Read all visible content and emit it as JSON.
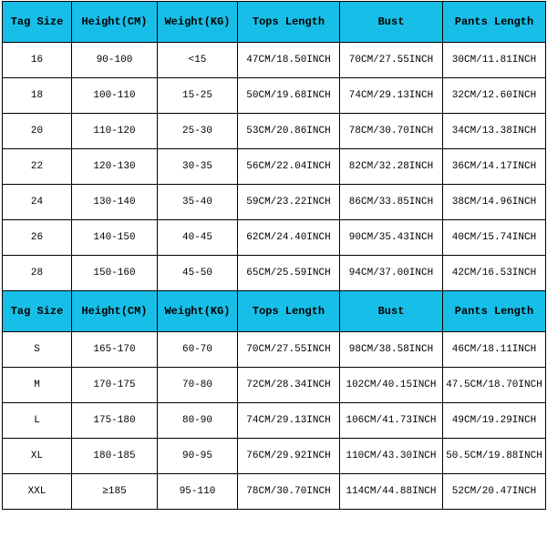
{
  "table": {
    "header_bg": "#17bfe8",
    "header_fontsize": 12,
    "cell_fontsize": 11,
    "header_row_height": 45,
    "data_row_height": 39,
    "border_color": "#000000",
    "text_color": "#000000",
    "columns": [
      "Tag Size",
      "Height(CM)",
      "Weight(KG)",
      "Tops Length",
      "Bust",
      "Pants Length"
    ],
    "section1_rows": [
      [
        "16",
        "90-100",
        "<15",
        "47CM/18.50INCH",
        "70CM/27.55INCH",
        "30CM/11.81INCH"
      ],
      [
        "18",
        "100-110",
        "15-25",
        "50CM/19.68INCH",
        "74CM/29.13INCH",
        "32CM/12.60INCH"
      ],
      [
        "20",
        "110-120",
        "25-30",
        "53CM/20.86INCH",
        "78CM/30.70INCH",
        "34CM/13.38INCH"
      ],
      [
        "22",
        "120-130",
        "30-35",
        "56CM/22.04INCH",
        "82CM/32.28INCH",
        "36CM/14.17INCH"
      ],
      [
        "24",
        "130-140",
        "35-40",
        "59CM/23.22INCH",
        "86CM/33.85INCH",
        "38CM/14.96INCH"
      ],
      [
        "26",
        "140-150",
        "40-45",
        "62CM/24.40INCH",
        "90CM/35.43INCH",
        "40CM/15.74INCH"
      ],
      [
        "28",
        "150-160",
        "45-50",
        "65CM/25.59INCH",
        "94CM/37.00INCH",
        "42CM/16.53INCH"
      ]
    ],
    "section2_rows": [
      [
        "S",
        "165-170",
        "60-70",
        "70CM/27.55INCH",
        "98CM/38.58INCH",
        "46CM/18.11INCH"
      ],
      [
        "M",
        "170-175",
        "70-80",
        "72CM/28.34INCH",
        "102CM/40.15INCH",
        "47.5CM/18.70INCH"
      ],
      [
        "L",
        "175-180",
        "80-90",
        "74CM/29.13INCH",
        "106CM/41.73INCH",
        "49CM/19.29INCH"
      ],
      [
        "XL",
        "180-185",
        "90-95",
        "76CM/29.92INCH",
        "110CM/43.30INCH",
        "50.5CM/19.88INCH"
      ],
      [
        "XXL",
        "≥185",
        "95-110",
        "78CM/30.70INCH",
        "114CM/44.88INCH",
        "52CM/20.47INCH"
      ]
    ]
  }
}
